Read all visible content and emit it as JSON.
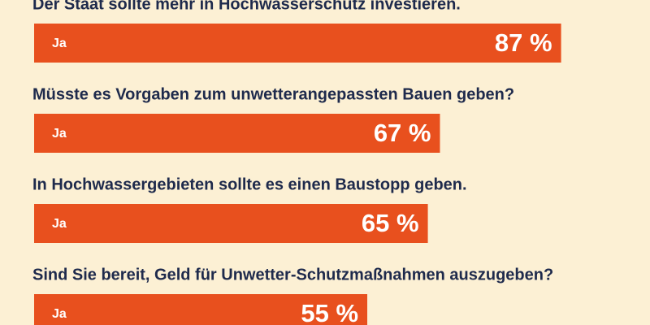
{
  "chart_data": {
    "type": "bar",
    "orientation": "horizontal",
    "categories": [
      "Der Staat sollte mehr in Hochwasserschutz investieren.",
      "Müsste es Vorgaben zum unwetterangepassten Bauen geben?",
      "In Hochwassergebieten sollte es einen Baustopp geben.",
      "Sind Sie bereit, Geld für Unwetter-Schutzmaßnahmen auszugeben?"
    ],
    "series": [
      {
        "name": "Ja",
        "color": "#e8501e",
        "values": [
          87,
          67,
          65,
          55
        ],
        "value_labels": [
          "87 %",
          "67 %",
          "65 %",
          "55 %"
        ]
      }
    ]
  }
}
